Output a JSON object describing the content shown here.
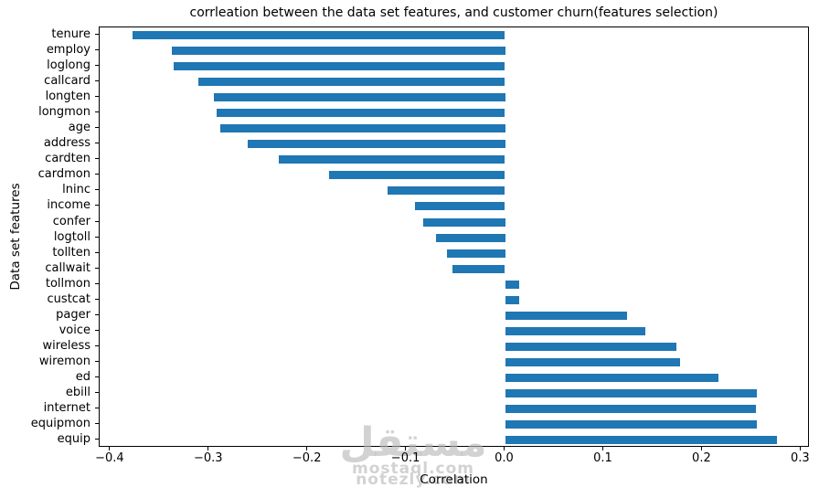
{
  "chart_data": {
    "type": "bar",
    "orientation": "horizontal",
    "title": "corrleation between the data set features, and customer churn(features selection)",
    "xlabel": "Correlation",
    "ylabel": "Data set features",
    "categories": [
      "tenure",
      "employ",
      "loglong",
      "callcard",
      "longten",
      "longmon",
      "age",
      "address",
      "cardten",
      "cardmon",
      "lninc",
      "income",
      "confer",
      "logtoll",
      "tollten",
      "callwait",
      "tollmon",
      "custcat",
      "pager",
      "voice",
      "wireless",
      "wiremon",
      "ed",
      "ebill",
      "internet",
      "equipmon",
      "equip"
    ],
    "values": [
      -0.378,
      -0.338,
      -0.336,
      -0.311,
      -0.295,
      -0.292,
      -0.289,
      -0.261,
      -0.229,
      -0.178,
      -0.119,
      -0.091,
      -0.083,
      -0.07,
      -0.059,
      -0.053,
      0.014,
      0.014,
      0.124,
      0.142,
      0.174,
      0.177,
      0.216,
      0.255,
      0.254,
      0.255,
      0.276
    ],
    "xlim": [
      -0.411,
      0.309
    ],
    "xticks": [
      -0.4,
      -0.3,
      -0.2,
      -0.1,
      0,
      0.1,
      0.2,
      0.3
    ],
    "xtick_labels": [
      "−0.4",
      "−0.3",
      "−0.2",
      "−0.1",
      "0.0",
      "0.1",
      "0.2",
      "0.3"
    ],
    "bar_color": "#1f77b4",
    "axis_color": "#000000",
    "grid": false,
    "legend": null
  },
  "watermark": {
    "logo_text": "مستقل",
    "domain1": "mostaql.com",
    "domain2": "notezly.com",
    "color": "#b6b6b6"
  }
}
